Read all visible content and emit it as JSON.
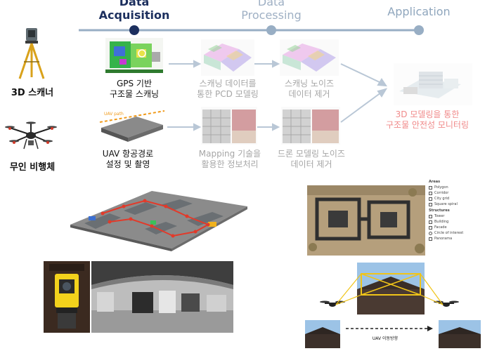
{
  "stages": {
    "acquisition": "Data\nAcquisition",
    "processing": "Data\nProcessing",
    "application": "Application"
  },
  "devices": {
    "scanner": "3D 스캐너",
    "drone": "무인 비행체"
  },
  "steps": {
    "gps_scan": "GPS 기반\n구조물 스캐닝",
    "pcd_model": "스캐닝 데이터를\n통한 PCD 모델링",
    "scan_noise": "스캐닝 노이즈\n데이터 제거",
    "uav_path": "UAV 항공경로\n설정 및 촬영",
    "mapping": "Mapping 기술을\n활용한 정보처리",
    "drone_noise": "드론 모델링 노이즈\n데이터 제거",
    "monitoring": "3D 모델링을 통한\n구조물 안전성 모니터링"
  },
  "thumb_text": {
    "uav_path_tag": "UAV path"
  },
  "legend": {
    "areas_title": "Areas",
    "areas": [
      "Polygon",
      "Corridor",
      "City grid",
      "Square spiral"
    ],
    "structures_title": "Structures",
    "structures": [
      "Tower",
      "Building",
      "Facade",
      "Circle of interest",
      "Panorama"
    ]
  },
  "uav_direction": "UAV 이동방향",
  "colors": {
    "active": "#1c2f5e",
    "timeline": "#98aec4",
    "arrow": "#b9c7d6",
    "highlight": "#f08a8a"
  }
}
